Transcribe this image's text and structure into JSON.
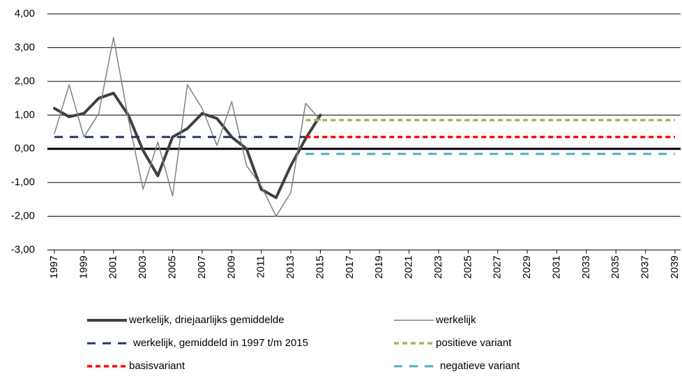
{
  "chart_data": {
    "type": "line",
    "xlim": [
      1997,
      2039
    ],
    "xticks": [
      1997,
      1999,
      2001,
      2003,
      2005,
      2007,
      2009,
      2011,
      2013,
      2015,
      2017,
      2019,
      2021,
      2023,
      2025,
      2027,
      2029,
      2031,
      2033,
      2035,
      2037,
      2039
    ],
    "ylim": [
      -3,
      4
    ],
    "yticks": [
      {
        "value": -3,
        "label": "-3,00"
      },
      {
        "value": -2,
        "label": "-2,00"
      },
      {
        "value": -1,
        "label": "-1,00"
      },
      {
        "value": 0,
        "label": "0,00"
      },
      {
        "value": 1,
        "label": "1,00"
      },
      {
        "value": 2,
        "label": "2,00"
      },
      {
        "value": 3,
        "label": "3,00"
      },
      {
        "value": 4,
        "label": "4,00"
      }
    ],
    "grid": true,
    "legend": "bottom",
    "series": [
      {
        "name": "werkelijk, driejaarlijks gemiddelde",
        "color": "#404040",
        "style": "thick",
        "x": [
          1997,
          1998,
          1999,
          2000,
          2001,
          2002,
          2003,
          2004,
          2005,
          2006,
          2007,
          2008,
          2009,
          2010,
          2011,
          2012,
          2013,
          2014,
          2015
        ],
        "values": [
          1.2,
          0.95,
          1.05,
          1.5,
          1.65,
          1.0,
          -0.05,
          -0.8,
          0.35,
          0.6,
          1.05,
          0.9,
          0.35,
          0.0,
          -1.2,
          -1.45,
          -0.5,
          0.3,
          1.0
        ]
      },
      {
        "name": "werkelijk",
        "color": "#808080",
        "style": "thin",
        "x": [
          1997,
          1998,
          1999,
          2000,
          2001,
          2002,
          2003,
          2004,
          2005,
          2006,
          2007,
          2008,
          2009,
          2010,
          2011,
          2012,
          2013,
          2014,
          2015
        ],
        "values": [
          0.45,
          1.9,
          0.35,
          1.05,
          3.3,
          0.9,
          -1.2,
          0.2,
          -1.4,
          1.9,
          1.2,
          0.1,
          1.4,
          -0.5,
          -1.1,
          -2.0,
          -1.3,
          1.35,
          0.85
        ]
      },
      {
        "name": "werkelijk, gemiddeld in 1997 t/m 2015",
        "color": "#1f3864",
        "style": "dash",
        "x": [
          1997,
          2014
        ],
        "values": [
          0.35,
          0.35
        ]
      },
      {
        "name": "positieve variant",
        "color": "#9bbb59",
        "style": "dot",
        "x": [
          2014,
          2039
        ],
        "values": [
          0.85,
          0.85
        ]
      },
      {
        "name": "basisvariant",
        "color": "#ff0000",
        "style": "dot",
        "x": [
          2014,
          2039
        ],
        "values": [
          0.35,
          0.35
        ]
      },
      {
        "name": "negatieve variant",
        "color": "#4bacc6",
        "style": "dash",
        "x": [
          2014,
          2039
        ],
        "values": [
          -0.15,
          -0.15
        ]
      }
    ]
  }
}
